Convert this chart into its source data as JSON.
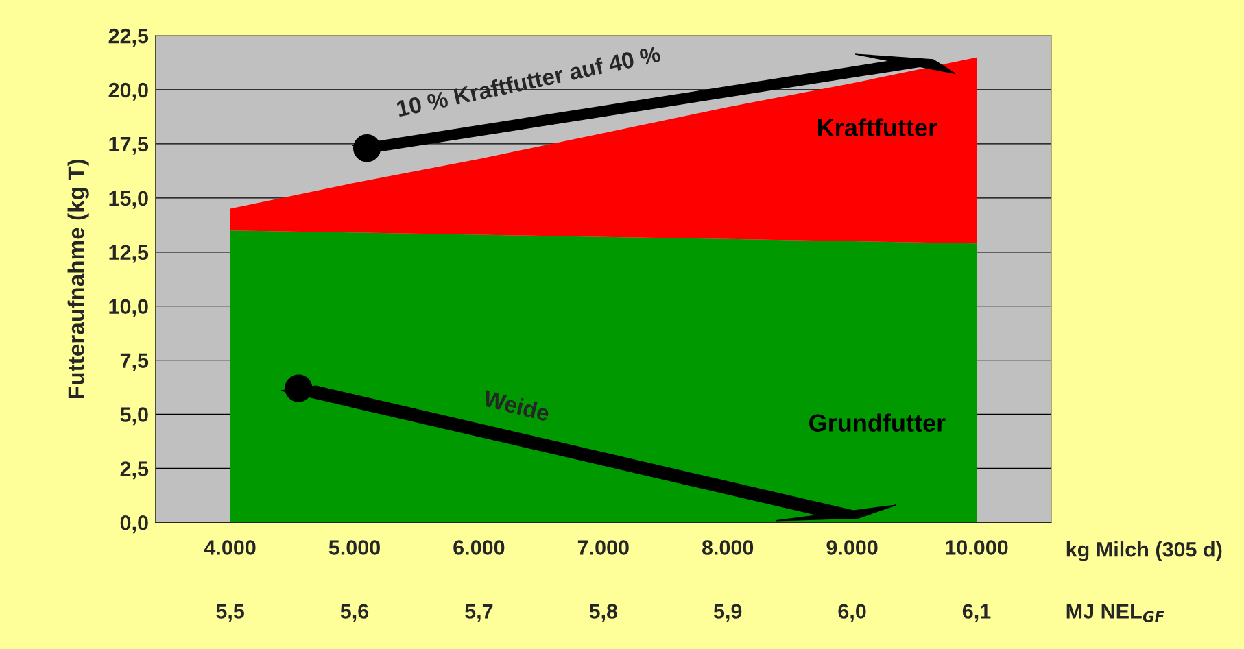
{
  "chart_data": {
    "type": "area",
    "stacked": true,
    "xlabel": "kg Milch (305 d)",
    "ylabel": "Futteraufnahme (kg T)",
    "categories": [
      "4.000",
      "5.000",
      "6.000",
      "7.000",
      "8.000",
      "9.000",
      "10.000"
    ],
    "series": [
      {
        "name": "Grundfutter",
        "color": "#009900",
        "values": [
          13.5,
          13.4,
          13.3,
          13.2,
          13.1,
          13.0,
          12.9
        ]
      },
      {
        "name": "Kraftfutter",
        "color": "#ff0000",
        "values": [
          1.0,
          2.3,
          3.5,
          4.8,
          6.1,
          7.3,
          8.6
        ]
      }
    ],
    "ylim": [
      0,
      22.5
    ],
    "yticks": [
      {
        "value": 0,
        "label": "0,0"
      },
      {
        "value": 2.5,
        "label": "2,5"
      },
      {
        "value": 5,
        "label": "5,0"
      },
      {
        "value": 7.5,
        "label": "7,5"
      },
      {
        "value": 10,
        "label": "10,0"
      },
      {
        "value": 12.5,
        "label": "12,5"
      },
      {
        "value": 15,
        "label": "15,0"
      },
      {
        "value": 17.5,
        "label": "17,5"
      },
      {
        "value": 20,
        "label": "20,0"
      },
      {
        "value": 22.5,
        "label": "22,5"
      }
    ],
    "grid": "y",
    "annotations": [
      "10 % Kraftfutter auf 40 %",
      "Weide",
      "5,5",
      "5,6",
      "5,7",
      "5,8",
      "5,9",
      "6,0",
      "6,1",
      "MJ NEL$_{GF}$"
    ]
  }
}
